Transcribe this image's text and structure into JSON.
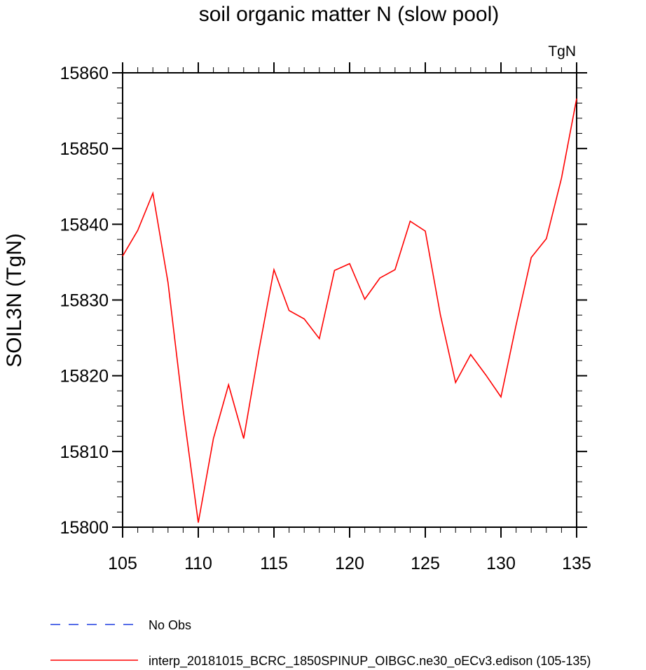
{
  "chart_data": {
    "type": "line",
    "title": "soil organic matter N (slow pool)",
    "units_label": "TgN",
    "xlabel": "",
    "ylabel": "SOIL3N  (TgN)",
    "xlim": [
      105,
      135
    ],
    "ylim": [
      15800,
      15860
    ],
    "x_ticks": [
      105,
      110,
      115,
      120,
      125,
      130,
      135
    ],
    "y_ticks": [
      15800,
      15810,
      15820,
      15830,
      15840,
      15850,
      15860
    ],
    "grid": false,
    "legend_position": "bottom-left",
    "series": [
      {
        "name": "No Obs",
        "color": "#1f3fe0",
        "style": "dashed",
        "x": [],
        "y": []
      },
      {
        "name": "interp_20181015_BCRC_1850SPINUP_OIBGC.ne30_oECv3.edison (105-135)",
        "color": "#ff0000",
        "style": "solid",
        "x": [
          105,
          106,
          107,
          108,
          109,
          110,
          111,
          112,
          113,
          114,
          115,
          116,
          117,
          118,
          119,
          120,
          121,
          122,
          123,
          124,
          125,
          126,
          127,
          128,
          129,
          130,
          131,
          132,
          133,
          134,
          135
        ],
        "y": [
          15835.8,
          15839.2,
          15844.1,
          15832.3,
          15815.5,
          15800.6,
          15811.7,
          15818.8,
          15811.7,
          15823.3,
          15834.0,
          15828.6,
          15827.5,
          15824.9,
          15833.9,
          15834.8,
          15830.1,
          15832.9,
          15834.0,
          15840.4,
          15839.1,
          15828.0,
          15819.1,
          15822.8,
          15820.1,
          15817.2,
          15826.7,
          15835.6,
          15838.1,
          15846.1,
          15856.6
        ]
      }
    ]
  }
}
